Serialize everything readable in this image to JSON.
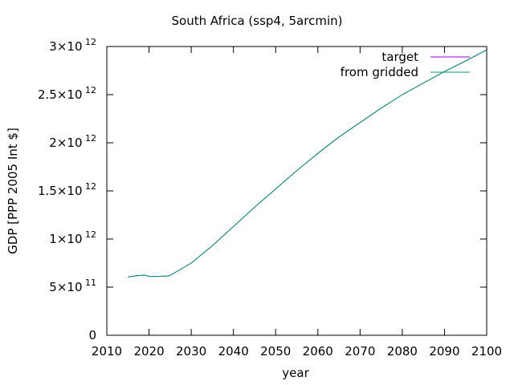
{
  "chart_data": {
    "type": "line",
    "title": "South Africa (ssp4, 5arcmin)",
    "xlabel": "year",
    "ylabel": "GDP [PPP 2005 Int $]",
    "xlim": [
      2010,
      2100
    ],
    "ylim": [
      0,
      3000000000000
    ],
    "xticks": [
      "2010",
      "2020",
      "2030",
      "2040",
      "2050",
      "2060",
      "2070",
      "2080",
      "2090",
      "2100"
    ],
    "yticks": [
      {
        "mant": "0",
        "exp": ""
      },
      {
        "mant": "5×10",
        "exp": "11"
      },
      {
        "mant": "1×10",
        "exp": "12"
      },
      {
        "mant": "1.5×10",
        "exp": "12"
      },
      {
        "mant": "2×10",
        "exp": "12"
      },
      {
        "mant": "2.5×10",
        "exp": "12"
      },
      {
        "mant": "3×10",
        "exp": "12"
      }
    ],
    "legend_position": "top-right",
    "x": [
      2015,
      2017,
      2019,
      2020,
      2022,
      2024,
      2025,
      2030,
      2035,
      2040,
      2045,
      2050,
      2055,
      2060,
      2065,
      2070,
      2075,
      2080,
      2085,
      2090,
      2095,
      2100
    ],
    "series": [
      {
        "name": "target",
        "color": "#9400d3",
        "values": [
          605000000000,
          618000000000,
          625000000000,
          612000000000,
          612000000000,
          615000000000,
          622000000000,
          750000000000,
          930000000000,
          1130000000000,
          1330000000000,
          1520000000000,
          1710000000000,
          1890000000000,
          2060000000000,
          2210000000000,
          2360000000000,
          2500000000000,
          2620000000000,
          2740000000000,
          2850000000000,
          2965000000000
        ]
      },
      {
        "name": "from gridded",
        "color": "#009e73",
        "values": [
          605000000000,
          618000000000,
          625000000000,
          612000000000,
          612000000000,
          615000000000,
          622000000000,
          750000000000,
          930000000000,
          1130000000000,
          1330000000000,
          1520000000000,
          1710000000000,
          1890000000000,
          2060000000000,
          2210000000000,
          2360000000000,
          2500000000000,
          2620000000000,
          2740000000000,
          2850000000000,
          2965000000000
        ]
      }
    ]
  }
}
